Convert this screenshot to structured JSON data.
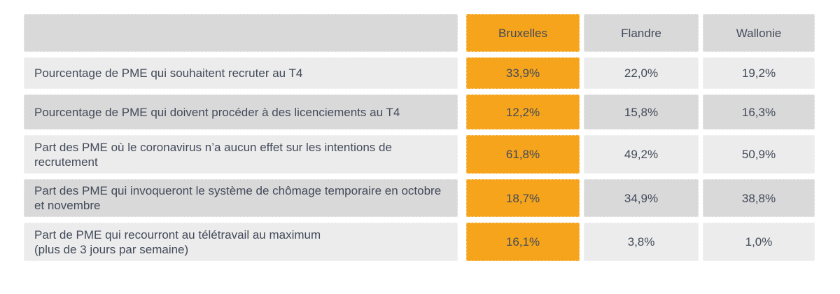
{
  "table": {
    "corner_label": "",
    "columns": [
      "Bruxelles",
      "Flandre",
      "Wallonie"
    ],
    "highlighted_column": "Bruxelles",
    "rows": [
      {
        "label": "Pourcentage de PME qui souhaitent recruter au T4",
        "values": [
          "33,9%",
          "22,0%",
          "19,2%"
        ]
      },
      {
        "label": "Pourcentage de PME qui doivent procéder à des licenciements au T4",
        "values": [
          "12,2%",
          "15,8%",
          "16,3%"
        ]
      },
      {
        "label": "Part des PME où le coronavirus n’a aucun effet sur les intentions de recrutement",
        "values": [
          "61,8%",
          "49,2%",
          "50,9%"
        ]
      },
      {
        "label": "Part des PME qui invoqueront le système de chômage temporaire en octobre et novembre",
        "values": [
          "18,7%",
          "34,9%",
          "38,8%"
        ]
      },
      {
        "label": "Part de PME qui recourront au télétravail au maximum\n(plus de 3 jours par semaine)",
        "values": [
          "16,1%",
          "3,8%",
          "1,0%"
        ]
      }
    ]
  },
  "colors": {
    "accent_orange": "#F6A41C",
    "header_gray": "#D9D9D9",
    "row_light_gray": "#ECECEC",
    "row_dark_gray": "#D9D9D9",
    "text": "#424A59"
  },
  "chart_data": {
    "type": "table",
    "title": "",
    "columns": [
      "Bruxelles",
      "Flandre",
      "Wallonie"
    ],
    "row_labels": [
      "Pourcentage de PME qui souhaitent recruter au T4",
      "Pourcentage de PME qui doivent procéder à des licenciements au T4",
      "Part des PME où le coronavirus n’a aucun effet sur les intentions de recrutement",
      "Part des PME qui invoqueront le système de chômage temporaire en octobre et novembre",
      "Part de PME qui recourront au télétravail au maximum (plus de 3 jours par semaine)"
    ],
    "series": [
      {
        "name": "Bruxelles",
        "values": [
          33.9,
          12.2,
          61.8,
          18.7,
          16.1
        ]
      },
      {
        "name": "Flandre",
        "values": [
          22.0,
          15.8,
          49.2,
          34.9,
          3.8
        ]
      },
      {
        "name": "Wallonie",
        "values": [
          19.2,
          16.3,
          50.9,
          38.8,
          1.0
        ]
      }
    ],
    "value_unit": "%",
    "decimal_separator": ",",
    "layout": {
      "highlight_column": "Bruxelles",
      "row_striping": [
        "light",
        "dark"
      ]
    }
  }
}
